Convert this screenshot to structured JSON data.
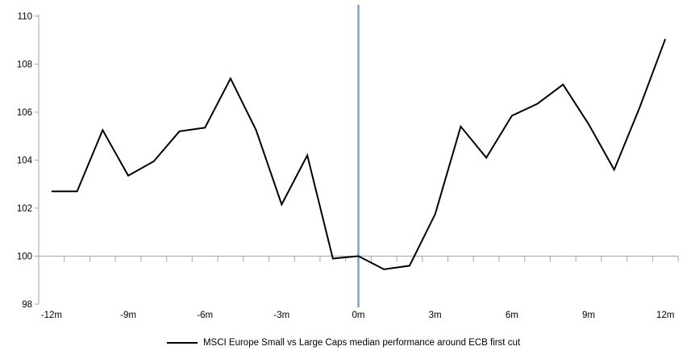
{
  "chart_data": {
    "type": "line",
    "title": "",
    "xlabel": "",
    "ylabel": "",
    "x": [
      -12,
      -11,
      -10,
      -9,
      -8,
      -7,
      -6,
      -5,
      -4,
      -3,
      -2,
      -1,
      0,
      1,
      2,
      3,
      4,
      5,
      6,
      7,
      8,
      9,
      10,
      11,
      12
    ],
    "series": [
      {
        "name": "MSCI Europe Small vs Large Caps median performance around ECB first cut",
        "color": "#000000",
        "values": [
          102.7,
          102.7,
          105.25,
          103.35,
          103.95,
          105.2,
          105.35,
          107.4,
          105.25,
          102.15,
          104.2,
          99.9,
          100.0,
          99.45,
          99.6,
          101.75,
          105.4,
          104.1,
          105.85,
          106.35,
          107.15,
          105.5,
          103.6,
          106.2,
          109.05
        ]
      }
    ],
    "ylim": [
      98,
      110
    ],
    "y_ticks": [
      98,
      100,
      102,
      104,
      106,
      108,
      110
    ],
    "x_tick_labels": [
      {
        "x": -12,
        "label": "-12m"
      },
      {
        "x": -9,
        "label": "-9m"
      },
      {
        "x": -6,
        "label": "-6m"
      },
      {
        "x": -3,
        "label": "-3m"
      },
      {
        "x": 0,
        "label": "0m"
      },
      {
        "x": 3,
        "label": "3m"
      },
      {
        "x": 6,
        "label": "6m"
      },
      {
        "x": 9,
        "label": "9m"
      },
      {
        "x": 12,
        "label": "12m"
      }
    ],
    "event_line": {
      "x": 0,
      "color": "#79A3D2"
    },
    "baseline": {
      "y": 100,
      "color": "#A6A6A6"
    },
    "axis_color": "#A6A6A6",
    "grid": "none (single gray line at y=100 only)",
    "legend": "MSCI Europe Small vs Large Caps median performance around ECB first cut",
    "legend_position": "bottom-center"
  }
}
